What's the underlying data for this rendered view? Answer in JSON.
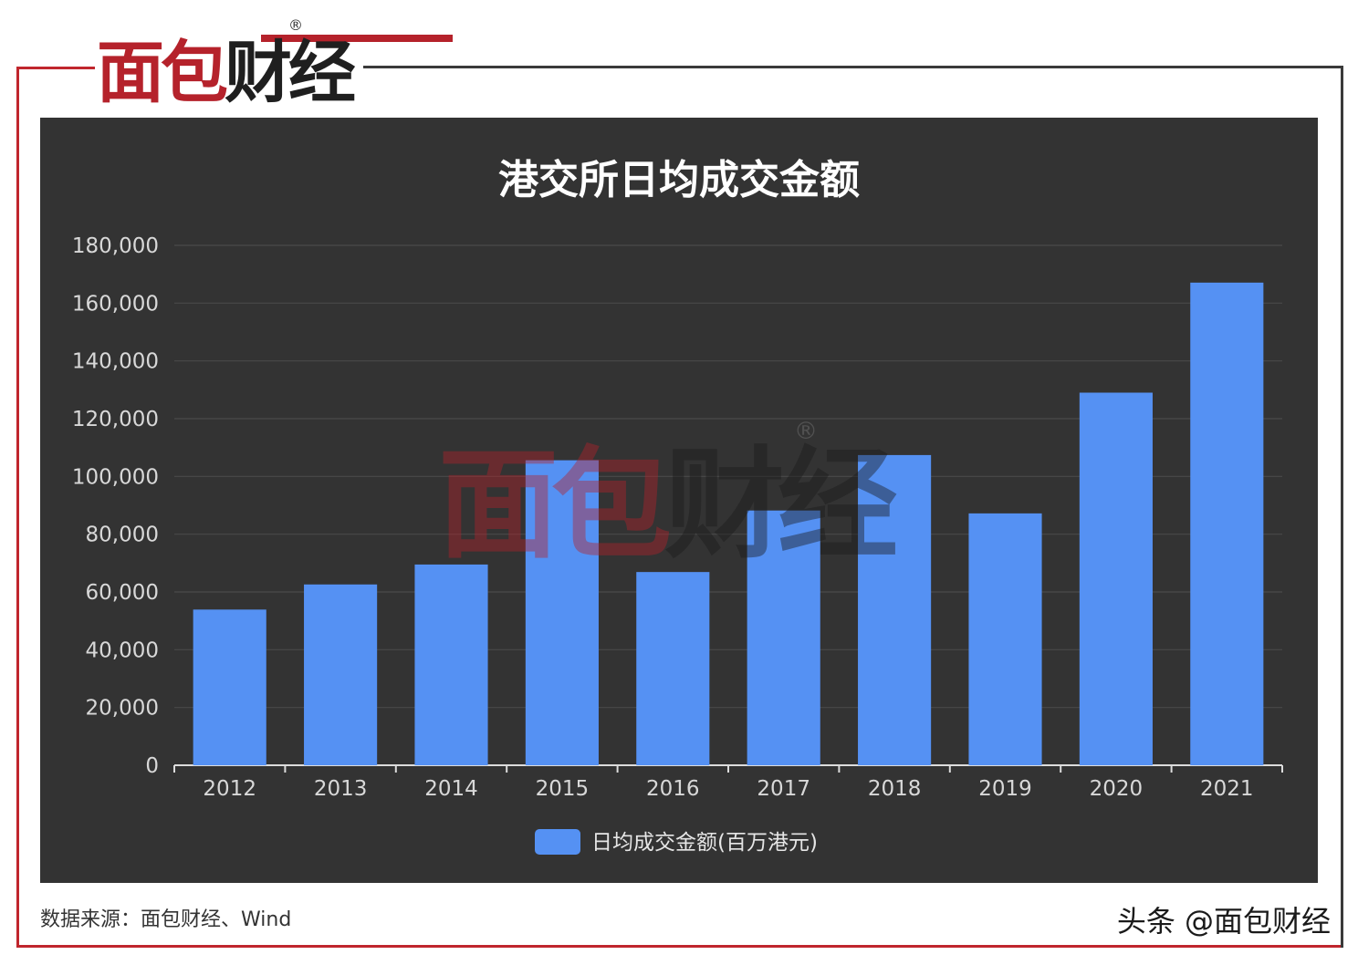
{
  "brand": {
    "logo_text_red": "面包",
    "logo_text_dark": "财经",
    "registered_mark": "®",
    "accent_color": "#b5222b"
  },
  "chart_data": {
    "type": "bar",
    "title": "港交所日均成交金额",
    "categories": [
      "2012",
      "2013",
      "2014",
      "2015",
      "2016",
      "2017",
      "2018",
      "2019",
      "2020",
      "2021"
    ],
    "series": [
      {
        "name": "日均成交金额(百万港元)",
        "color": "#5591f3",
        "values": [
          53900,
          62600,
          69500,
          105600,
          66900,
          88200,
          107400,
          87200,
          129000,
          167100
        ]
      }
    ],
    "xlabel": "",
    "ylabel": "",
    "ylim": [
      0,
      180000
    ],
    "yticks": [
      "0",
      "20,000",
      "40,000",
      "60,000",
      "80,000",
      "100,000",
      "120,000",
      "140,000",
      "160,000",
      "180,000"
    ],
    "grid": true,
    "legend_position": "bottom-center",
    "background": "#333333"
  },
  "footer": {
    "source": "数据来源：面包财经、Wind",
    "credit": "头条 @面包财经"
  }
}
